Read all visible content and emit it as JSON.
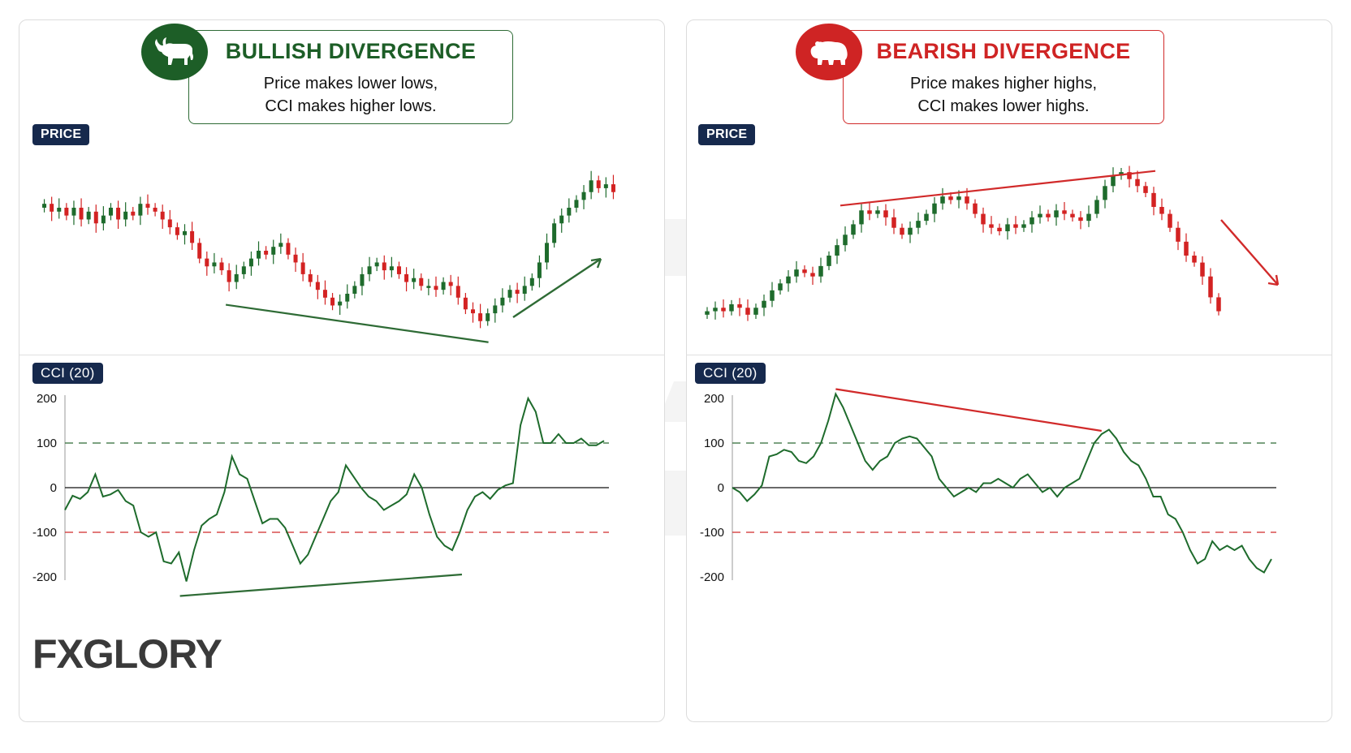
{
  "colors": {
    "bull": "#1d5e27",
    "bear": "#cf2424",
    "candle_up": "#1e6b2c",
    "candle_down": "#d32222",
    "line_green": "#2e6b35",
    "line_red": "#d12a2a",
    "tag_bg": "#16294d",
    "level_100": "#2e6b35",
    "level_neg100": "#d12a2a"
  },
  "watermark": {
    "letter": "G"
  },
  "left": {
    "badge_icon": "bull-icon",
    "title": "BULLISH DIVERGENCE",
    "line1": "Price makes lower lows,",
    "line2": "CCI makes higher lows.",
    "price_tag": "PRICE",
    "cci_tag": "CCI (20)",
    "logo": "FXGLORY"
  },
  "right": {
    "badge_icon": "bear-icon",
    "title": "BEARISH DIVERGENCE",
    "line1": "Price makes higher highs,",
    "line2": "CCI makes lower highs.",
    "price_tag": "PRICE",
    "cci_tag": "CCI (20)"
  },
  "chart_data": [
    {
      "type": "line",
      "panel": "left",
      "title": "CCI (20)",
      "yticks": [
        200,
        100,
        0,
        -100,
        -200
      ],
      "levels": [
        100,
        0,
        -100
      ],
      "ylim": [
        -200,
        200
      ],
      "series": [
        {
          "name": "CCI (20)",
          "values": [
            -50,
            -18,
            -25,
            -10,
            30,
            -20,
            -15,
            -5,
            -30,
            -40,
            -100,
            -110,
            -100,
            -165,
            -170,
            -145,
            -210,
            -140,
            -85,
            -70,
            -60,
            -10,
            70,
            30,
            20,
            -30,
            -80,
            -70,
            -70,
            -90,
            -130,
            -170,
            -150,
            -110,
            -70,
            -30,
            -10,
            50,
            25,
            0,
            -20,
            -30,
            -50,
            -40,
            -30,
            -15,
            30,
            0,
            -60,
            -110,
            -130,
            -140,
            -100,
            -50,
            -20,
            -10,
            -25,
            -5,
            5,
            10,
            140,
            200,
            170,
            100,
            100,
            120,
            100,
            100,
            110,
            95,
            95,
            105
          ],
          "gaps": [
            [
              65,
              67
            ],
            [
              68,
              70
            ]
          ]
        }
      ]
    },
    {
      "type": "line",
      "panel": "right",
      "title": "CCI (20)",
      "yticks": [
        200,
        100,
        0,
        -100,
        -200
      ],
      "levels": [
        100,
        0,
        -100
      ],
      "ylim": [
        -200,
        200
      ],
      "series": [
        {
          "name": "CCI (20)",
          "values": [
            0,
            -10,
            -30,
            -15,
            5,
            70,
            75,
            85,
            80,
            60,
            55,
            70,
            100,
            150,
            210,
            180,
            140,
            100,
            60,
            40,
            60,
            70,
            100,
            110,
            115,
            110,
            90,
            70,
            20,
            0,
            -20,
            -10,
            0,
            -10,
            10,
            10,
            20,
            10,
            0,
            20,
            30,
            10,
            -10,
            0,
            -20,
            0,
            10,
            20,
            60,
            100,
            120,
            130,
            110,
            80,
            60,
            50,
            20,
            -20,
            -20,
            -60,
            -70,
            -100,
            -140,
            -170,
            -160,
            -120,
            -140,
            -130,
            -140,
            -130,
            -160,
            -180,
            -190,
            -160
          ],
          "gaps": []
        }
      ]
    },
    {
      "type": "candlestick",
      "panel": "left",
      "title": "PRICE",
      "close_path_description": "Price falls from start to a low, bounces, makes a lower low, then rallies to a new high",
      "closes": [
        100,
        98,
        99,
        97,
        99,
        96,
        98,
        95,
        97,
        99,
        96,
        98,
        97,
        100,
        99,
        98,
        96,
        94,
        92,
        93,
        90,
        86,
        84,
        85,
        83,
        80,
        82,
        84,
        86,
        88,
        87,
        89,
        90,
        87,
        85,
        82,
        80,
        78,
        76,
        74,
        75,
        77,
        79,
        82,
        84,
        85,
        83,
        84,
        82,
        80,
        81,
        79,
        79,
        78,
        80,
        79,
        76,
        73,
        72,
        70,
        72,
        74,
        76,
        78,
        77,
        79,
        81,
        85,
        90,
        95,
        97,
        99,
        101,
        103,
        106,
        104,
        105,
        103
      ],
      "lows_marked": [
        {
          "index": 25,
          "role": "first-low"
        },
        {
          "index": 59,
          "role": "lower-low"
        }
      ]
    },
    {
      "type": "candlestick",
      "panel": "right",
      "title": "PRICE",
      "close_path_description": "Price rises to a high, pulls back, makes a higher high, then drops sharply",
      "closes": [
        60,
        61,
        60,
        62,
        61,
        59,
        61,
        63,
        66,
        68,
        70,
        72,
        71,
        70,
        73,
        76,
        79,
        82,
        85,
        89,
        88,
        89,
        87,
        84,
        82,
        84,
        86,
        88,
        91,
        93,
        92,
        93,
        91,
        88,
        85,
        84,
        83,
        85,
        84,
        85,
        87,
        88,
        87,
        89,
        88,
        87,
        86,
        88,
        92,
        96,
        99,
        100,
        98,
        96,
        94,
        90,
        88,
        84,
        80,
        76,
        74,
        70,
        64,
        60
      ],
      "highs_marked": [
        {
          "index": 19,
          "role": "first-high"
        },
        {
          "index": 52,
          "role": "higher-high"
        }
      ]
    }
  ]
}
